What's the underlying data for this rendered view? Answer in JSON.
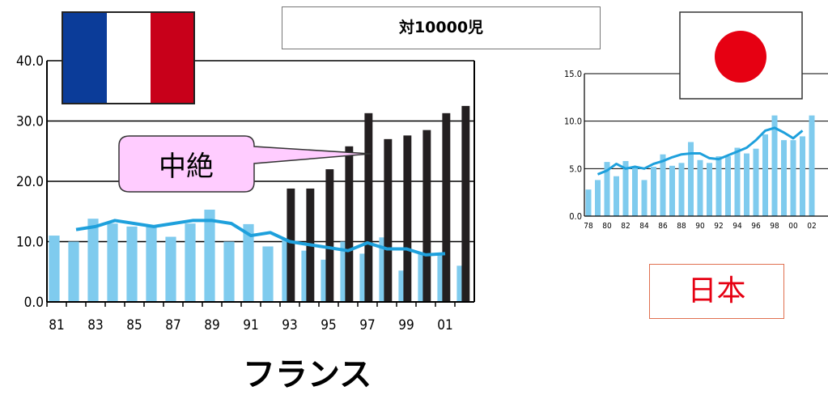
{
  "title_box": "対10000児",
  "callout_label": "中絶",
  "france": {
    "label": "フランス",
    "y_ticks": [
      "0.0",
      "10.0",
      "20.0",
      "30.0",
      "40.0"
    ],
    "x_ticks": [
      "81",
      "83",
      "85",
      "87",
      "89",
      "91",
      "93",
      "95",
      "97",
      "99",
      "01"
    ]
  },
  "japan": {
    "label": "日本",
    "y_ticks": [
      "0.0",
      "5.0",
      "10.0",
      "15.0"
    ],
    "x_ticks": [
      "78",
      "80",
      "82",
      "84",
      "86",
      "88",
      "90",
      "92",
      "94",
      "96",
      "98",
      "00",
      "02"
    ]
  },
  "colors": {
    "bar_light": "#7fcbee",
    "bar_dark": "#231f20",
    "trend_line": "#1ea0dc",
    "callout_fill": "#ffccff",
    "japan_label": "#e60012",
    "flag_blue": "#0b3c99",
    "flag_red": "#c8001a",
    "japan_sun": "#e60012"
  },
  "chart_data": [
    {
      "type": "bar",
      "title": "",
      "xlabel": "",
      "ylabel": "",
      "ylim": [
        0,
        40
      ],
      "grid": true,
      "x": [
        1981,
        1982,
        1983,
        1984,
        1985,
        1986,
        1987,
        1988,
        1989,
        1990,
        1991,
        1992,
        1993,
        1994,
        1995,
        1996,
        1997,
        1998,
        1999,
        2000,
        2001,
        2002
      ],
      "series": [
        {
          "values": [
            11.0,
            10.0,
            13.8,
            13.0,
            12.5,
            12.5,
            10.8,
            13.0,
            15.3,
            10.0,
            12.9,
            9.2,
            10.5,
            8.5,
            7.0,
            10.0,
            8.0,
            10.7,
            5.2,
            8.0,
            8.0,
            6.0
          ]
        },
        {
          "values": [
            null,
            null,
            null,
            null,
            null,
            null,
            null,
            null,
            null,
            null,
            null,
            null,
            18.8,
            18.8,
            22.0,
            25.8,
            31.3,
            27.0,
            27.6,
            28.5,
            31.3,
            32.5
          ]
        },
        {
          "type": "line",
          "x": [
            1982,
            1983,
            1984,
            1985,
            1986,
            1987,
            1988,
            1989,
            1990,
            1991,
            1992,
            1993,
            1994,
            1995,
            1996,
            1997,
            1998,
            1999,
            2000,
            2001
          ],
          "values": [
            12.0,
            12.5,
            13.5,
            13.0,
            12.5,
            13.0,
            13.5,
            13.5,
            13.0,
            11.0,
            11.5,
            10.0,
            9.5,
            9.0,
            8.5,
            9.8,
            8.8,
            8.8,
            7.8,
            8.0
          ]
        }
      ]
    },
    {
      "type": "bar",
      "title": "",
      "xlabel": "",
      "ylabel": "",
      "ylim": [
        0,
        15
      ],
      "grid": true,
      "x": [
        1978,
        1979,
        1980,
        1981,
        1982,
        1983,
        1984,
        1985,
        1986,
        1987,
        1988,
        1989,
        1990,
        1991,
        1992,
        1993,
        1994,
        1995,
        1996,
        1997,
        1998,
        1999,
        2000,
        2001,
        2002
      ],
      "series": [
        {
          "values": [
            2.8,
            3.8,
            5.7,
            4.2,
            5.8,
            5.1,
            3.8,
            5.2,
            6.5,
            5.3,
            5.6,
            7.8,
            5.9,
            5.6,
            6.3,
            6.3,
            7.2,
            6.6,
            7.1,
            8.6,
            10.6,
            8.0,
            8.0,
            8.4,
            10.6
          ]
        },
        {
          "type": "line",
          "x": [
            1979,
            1980,
            1981,
            1982,
            1983,
            1984,
            1985,
            1986,
            1987,
            1988,
            1989,
            1990,
            1991,
            1992,
            1993,
            1994,
            1995,
            1996,
            1997,
            1998,
            1999,
            2000,
            2001
          ],
          "values": [
            4.4,
            4.8,
            5.5,
            5.0,
            5.2,
            5.0,
            5.5,
            5.8,
            6.2,
            6.5,
            6.6,
            6.6,
            6.1,
            6.0,
            6.4,
            6.8,
            7.2,
            8.0,
            9.0,
            9.3,
            8.8,
            8.2,
            9.0
          ]
        }
      ]
    }
  ]
}
